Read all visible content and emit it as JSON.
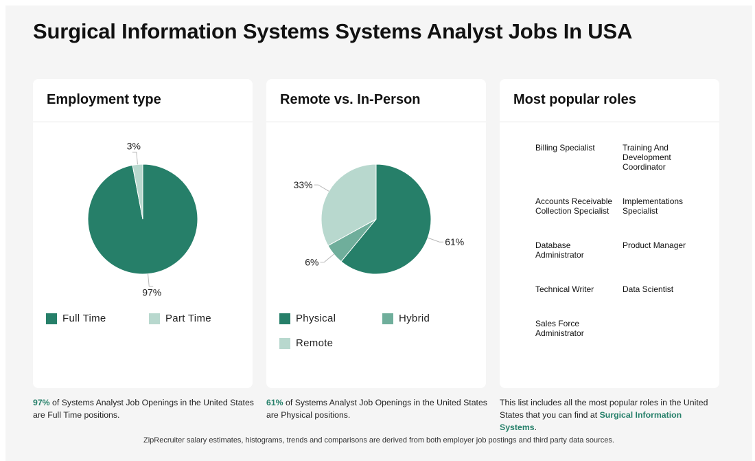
{
  "page": {
    "title": "Surgical Information Systems Systems Analyst Jobs In USA",
    "footer": "ZipRecruiter salary estimates, histograms, trends and comparisons are derived from both employer job postings and third party data sources."
  },
  "employment": {
    "title": "Employment type",
    "caption_pct": "97%",
    "caption_text": " of Systems Analyst Job Openings in the United States are Full Time positions."
  },
  "remote": {
    "title": "Remote vs. In-Person",
    "caption_pct": "61%",
    "caption_text": " of Systems Analyst Job Openings in the United States are Physical positions."
  },
  "roles": {
    "title": "Most popular roles",
    "items": [
      "Billing Specialist",
      "Training And Development Coordinator",
      "Accounts Receivable Collection Specialist",
      "Implementations Specialist",
      "Database Administrator",
      "Product Manager",
      "Technical Writer",
      "Data Scientist",
      "Sales Force Administrator"
    ],
    "caption_text": "This list includes all the most popular roles in the United States that you can find at ",
    "caption_link": "Surgical Information Systems",
    "caption_end": "."
  },
  "colors": {
    "dark_green": "#267f69",
    "mid_green": "#6fae9b",
    "light_green": "#b8d8ce"
  },
  "chart_data": [
    {
      "type": "pie",
      "title": "Employment type",
      "categories": [
        "Full Time",
        "Part Time"
      ],
      "values": [
        97,
        3
      ],
      "labels": [
        "97%",
        "3%"
      ],
      "colors": [
        "#267f69",
        "#b8d8ce"
      ],
      "legend_position": "bottom"
    },
    {
      "type": "pie",
      "title": "Remote vs. In-Person",
      "categories": [
        "Physical",
        "Hybrid",
        "Remote"
      ],
      "values": [
        61,
        6,
        33
      ],
      "labels": [
        "61%",
        "6%",
        "33%"
      ],
      "colors": [
        "#267f69",
        "#6fae9b",
        "#b8d8ce"
      ],
      "legend_position": "bottom"
    }
  ]
}
